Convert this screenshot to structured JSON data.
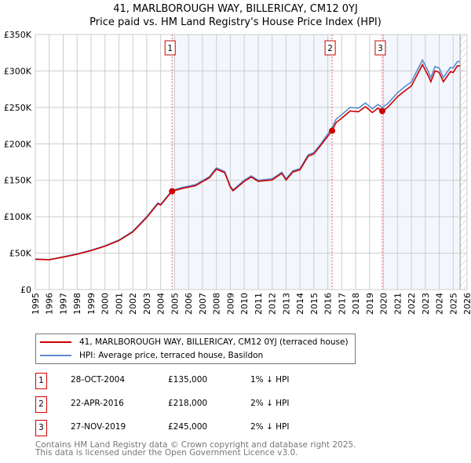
{
  "title": "41, MARLBOROUGH WAY, BILLERICAY, CM12 0YJ",
  "subtitle": "Price paid vs. HM Land Registry's House Price Index (HPI)",
  "chart_data": {
    "type": "line",
    "title": "41, MARLBOROUGH WAY, BILLERICAY, CM12 0YJ",
    "xlim": [
      1995,
      2026
    ],
    "ylim": [
      0,
      350000
    ],
    "x_ticks": [
      "1995",
      "1996",
      "1997",
      "1998",
      "1999",
      "2000",
      "2001",
      "2002",
      "2003",
      "2004",
      "2005",
      "2006",
      "2007",
      "2008",
      "2009",
      "2010",
      "2011",
      "2012",
      "2013",
      "2014",
      "2015",
      "2016",
      "2017",
      "2018",
      "2019",
      "2020",
      "2021",
      "2022",
      "2023",
      "2024",
      "2025",
      "2026"
    ],
    "y_ticks": [
      {
        "v": 0,
        "label": "£0"
      },
      {
        "v": 50000,
        "label": "£50K"
      },
      {
        "v": 100000,
        "label": "£100K"
      },
      {
        "v": 150000,
        "label": "£150K"
      },
      {
        "v": 200000,
        "label": "£200K"
      },
      {
        "v": 250000,
        "label": "£250K"
      },
      {
        "v": 300000,
        "label": "£300K"
      },
      {
        "v": 350000,
        "label": "£350K"
      }
    ],
    "grid": true,
    "legend_placement": "below",
    "x": [
      1995,
      1996,
      1997,
      1998,
      1999,
      2000,
      2001,
      2002,
      2003,
      2003.8,
      2004,
      2004.82,
      2005.5,
      2006.5,
      2007.5,
      2008,
      2008.6,
      2009,
      2009.2,
      2010,
      2010.5,
      2011,
      2012,
      2012.7,
      2013,
      2013.5,
      2014,
      2014.6,
      2015,
      2015.5,
      2016.3,
      2016.6,
      2017,
      2017.6,
      2018.2,
      2018.7,
      2019.2,
      2019.6,
      2019.9,
      2020.3,
      2021,
      2021.5,
      2022,
      2022.8,
      2023.2,
      2023.4,
      2023.7,
      2024,
      2024.3,
      2024.8,
      2025,
      2025.3,
      2025.5
    ],
    "series": [
      {
        "name": "41, MARLBOROUGH WAY, BILLERICAY, CM12 0YJ (terraced house)",
        "color": "#cc0000",
        "values": [
          41600,
          41000,
          44500,
          48500,
          53500,
          59400,
          67300,
          79200,
          99000,
          117800,
          116000,
          135000,
          138600,
          142600,
          153500,
          165300,
          160400,
          140600,
          135600,
          148500,
          154400,
          148500,
          150500,
          159400,
          150500,
          161400,
          164300,
          183200,
          186100,
          198000,
          218000,
          229300,
          235200,
          245000,
          244000,
          251000,
          243000,
          249000,
          245000,
          250000,
          264600,
          272400,
          279300,
          308700,
          294000,
          285200,
          300000,
          298000,
          285200,
          299000,
          298000,
          307000,
          307000
        ]
      },
      {
        "name": "HPI: Average price, terraced house, Basildon",
        "color": "#5b8bd0",
        "values": [
          42000,
          41000,
          45000,
          49000,
          54000,
          60000,
          68000,
          80000,
          100000,
          119000,
          117000,
          136000,
          140000,
          144000,
          155000,
          167000,
          162000,
          142000,
          137000,
          150000,
          156000,
          150000,
          152000,
          161000,
          152000,
          163000,
          166000,
          185000,
          188000,
          200000,
          222000,
          234000,
          240000,
          250000,
          249000,
          256000,
          248000,
          254000,
          250000,
          255000,
          270000,
          278000,
          285000,
          315000,
          300000,
          291000,
          306000,
          304000,
          291000,
          305000,
          304000,
          313000,
          313000
        ]
      }
    ],
    "sales": [
      {
        "label": "1",
        "x": 2004.82,
        "date": "28-OCT-2004",
        "price": 135000,
        "price_label": "£135,000",
        "hpi_label": "1% ↓ HPI"
      },
      {
        "label": "2",
        "x": 2016.31,
        "date": "22-APR-2016",
        "price": 218000,
        "price_label": "£218,000",
        "hpi_label": "2% ↓ HPI"
      },
      {
        "label": "3",
        "x": 2019.91,
        "date": "27-NOV-2019",
        "price": 245000,
        "price_label": "£245,000",
        "hpi_label": "2% ↓ HPI"
      }
    ],
    "shaded_ranges": [
      [
        2004.82,
        2016.31
      ],
      [
        2019.91,
        2025.5
      ]
    ],
    "forecast_start": 2025.5
  },
  "legend": {
    "red": "41, MARLBOROUGH WAY, BILLERICAY, CM12 0YJ (terraced house)",
    "blue": "HPI: Average price, terraced house, Basildon"
  },
  "footer": {
    "line1": "Contains HM Land Registry data © Crown copyright and database right 2025.",
    "line2": "This data is licensed under the Open Government Licence v3.0."
  }
}
